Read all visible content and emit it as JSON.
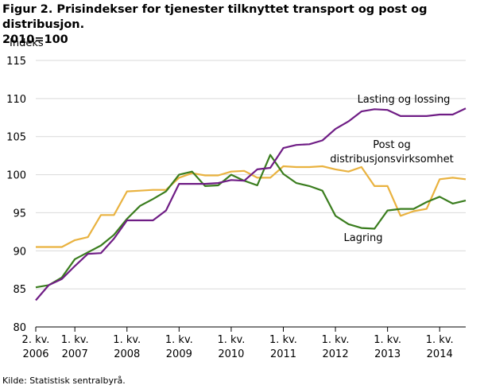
{
  "title_line1": "Figur 2. Prisindekser for tjenester tilknyttet transport og post og distribusjon.",
  "title_line2": "2010=100",
  "source": "Kilde: Statistisk sentralbyrå.",
  "chart_data": {
    "type": "line",
    "ylabel": "Indeks",
    "ylim": [
      80,
      115
    ],
    "yticks": [
      80,
      85,
      90,
      95,
      100,
      105,
      110,
      115
    ],
    "grid": true,
    "x": [
      "2006Q2",
      "2006Q3",
      "2006Q4",
      "2007Q1",
      "2007Q2",
      "2007Q3",
      "2007Q4",
      "2008Q1",
      "2008Q2",
      "2008Q3",
      "2008Q4",
      "2009Q1",
      "2009Q2",
      "2009Q3",
      "2009Q4",
      "2010Q1",
      "2010Q2",
      "2010Q3",
      "2010Q4",
      "2011Q1",
      "2011Q2",
      "2011Q3",
      "2011Q4",
      "2012Q1",
      "2012Q2",
      "2012Q3",
      "2012Q4",
      "2013Q1",
      "2013Q2",
      "2013Q3",
      "2013Q4",
      "2014Q1",
      "2014Q2",
      "2014Q3"
    ],
    "xtick_labels": [
      {
        "line1": "2. kv.",
        "line2": "2006"
      },
      {
        "line1": "1. kv.",
        "line2": "2007"
      },
      {
        "line1": "1. kv.",
        "line2": "2008"
      },
      {
        "line1": "1. kv.",
        "line2": "2009"
      },
      {
        "line1": "1. kv.",
        "line2": "2010"
      },
      {
        "line1": "1. kv.",
        "line2": "2011"
      },
      {
        "line1": "1. kv.",
        "line2": "2012"
      },
      {
        "line1": "1. kv.",
        "line2": "2013"
      },
      {
        "line1": "1. kv.",
        "line2": "2014"
      }
    ],
    "series": [
      {
        "name": "Lasting og lossing",
        "color": "#6f1d85",
        "values": [
          83.5,
          85.5,
          86.3,
          88.0,
          89.6,
          89.7,
          91.6,
          94.0,
          94.0,
          94.0,
          95.3,
          98.8,
          98.8,
          98.8,
          98.9,
          99.3,
          99.2,
          100.7,
          100.9,
          103.5,
          103.9,
          104.0,
          104.5,
          106.0,
          107.0,
          108.3,
          108.6,
          108.5,
          107.7,
          107.7,
          107.7,
          107.9,
          107.9,
          108.7
        ]
      },
      {
        "name": "Post og distribusjonsvirksomhet",
        "color": "#e9b23f",
        "values": [
          90.5,
          90.5,
          90.5,
          91.4,
          91.8,
          94.7,
          94.7,
          97.8,
          97.9,
          98.0,
          98.0,
          99.6,
          100.2,
          99.9,
          99.9,
          100.4,
          100.5,
          99.6,
          99.6,
          101.1,
          101.0,
          101.0,
          101.1,
          100.7,
          100.4,
          101.0,
          98.5,
          98.5,
          94.6,
          95.2,
          95.5,
          99.4,
          99.6,
          99.4
        ]
      },
      {
        "name": "Lagring",
        "color": "#3a7d1e",
        "values": [
          85.2,
          85.5,
          86.5,
          88.9,
          89.8,
          90.7,
          92.1,
          94.2,
          95.9,
          96.8,
          97.8,
          100.0,
          100.4,
          98.5,
          98.6,
          100.0,
          99.2,
          98.6,
          102.6,
          100.1,
          98.9,
          98.5,
          97.9,
          94.6,
          93.5,
          93.0,
          92.9,
          95.3,
          95.5,
          95.5,
          96.4,
          97.1,
          96.2,
          96.6
        ]
      }
    ],
    "annotations": [
      {
        "text": "Lasting og lossing",
        "series": "Lasting og lossing"
      },
      {
        "text": "Post og",
        "series": "Post og distribusjonsvirksomhet"
      },
      {
        "text": "distribusjonsvirksomhet",
        "series": "Post og distribusjonsvirksomhet"
      },
      {
        "text": "Lagring",
        "series": "Lagring"
      }
    ]
  }
}
